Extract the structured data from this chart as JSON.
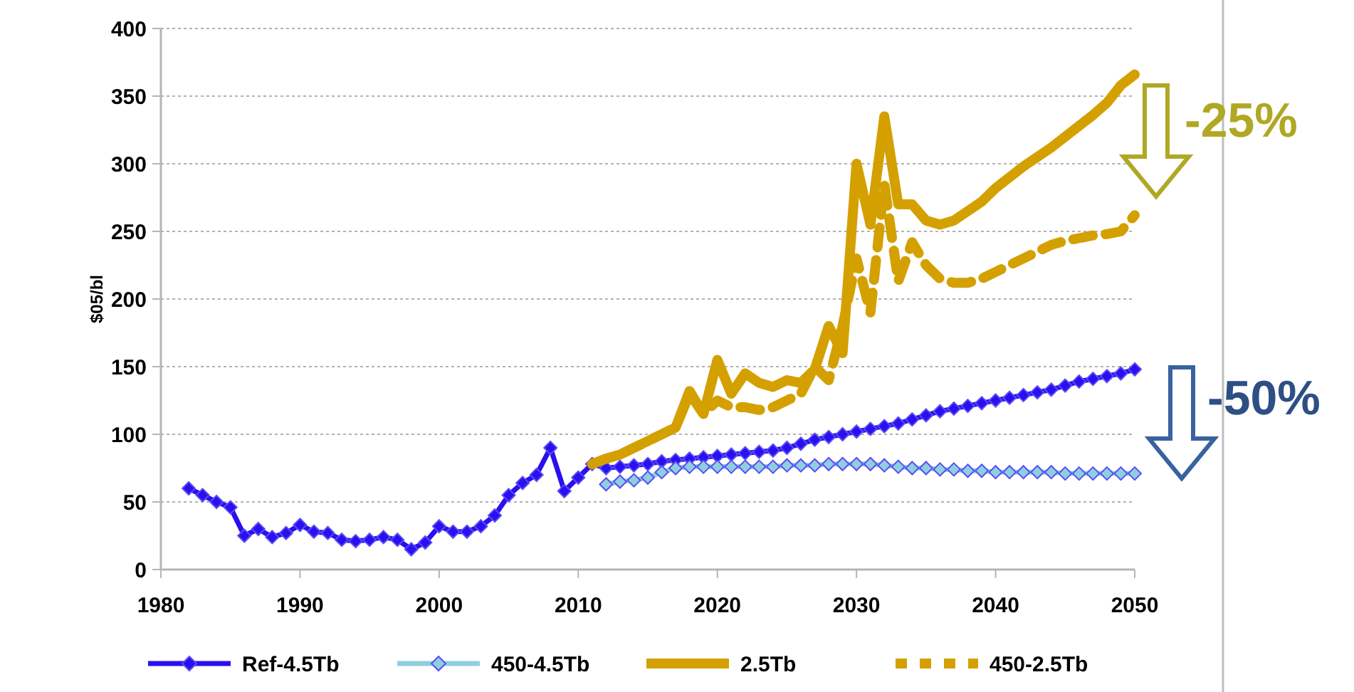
{
  "chart_data": {
    "type": "line",
    "ylabel": "$05/bl",
    "xlim": [
      1980,
      2050
    ],
    "xticks": [
      1980,
      1990,
      2000,
      2010,
      2020,
      2030,
      2040,
      2050
    ],
    "ylim": [
      0,
      400
    ],
    "yticks": [
      0,
      50,
      100,
      150,
      200,
      250,
      300,
      350,
      400
    ],
    "grid": "y",
    "legend": "bottom",
    "annotations": [
      "-25%",
      "-50%"
    ],
    "series": [
      {
        "name": "Ref-4.5Tb",
        "color": "#2a0ff0",
        "marker": "diamond",
        "line_style": "solid",
        "x": [
          1982,
          1983,
          1984,
          1985,
          1986,
          1987,
          1988,
          1989,
          1990,
          1991,
          1992,
          1993,
          1994,
          1995,
          1996,
          1997,
          1998,
          1999,
          2000,
          2001,
          2002,
          2003,
          2004,
          2005,
          2006,
          2007,
          2008,
          2009,
          2010,
          2011,
          2012,
          2013,
          2014,
          2015,
          2016,
          2017,
          2018,
          2019,
          2020,
          2021,
          2022,
          2023,
          2024,
          2025,
          2026,
          2027,
          2028,
          2029,
          2030,
          2031,
          2032,
          2033,
          2034,
          2035,
          2036,
          2037,
          2038,
          2039,
          2040,
          2041,
          2042,
          2043,
          2044,
          2045,
          2046,
          2047,
          2048,
          2049,
          2050
        ],
        "values": [
          60,
          55,
          50,
          46,
          25,
          30,
          24,
          27,
          33,
          28,
          27,
          22,
          21,
          22,
          24,
          22,
          15,
          20,
          32,
          28,
          28,
          32,
          40,
          55,
          64,
          70,
          90,
          58,
          68,
          78,
          75,
          76,
          77,
          78,
          80,
          81,
          82,
          83,
          84,
          85,
          86,
          87,
          88,
          90,
          93,
          96,
          98,
          100,
          102,
          104,
          106,
          108,
          111,
          114,
          117,
          119,
          121,
          123,
          125,
          127,
          129,
          131,
          133,
          136,
          139,
          141,
          143,
          145,
          148
        ]
      },
      {
        "name": "450-4.5Tb",
        "color": "#8ecfdf",
        "marker": "diamond",
        "line_style": "solid",
        "x": [
          2012,
          2013,
          2014,
          2015,
          2016,
          2017,
          2018,
          2019,
          2020,
          2021,
          2022,
          2023,
          2024,
          2025,
          2026,
          2027,
          2028,
          2029,
          2030,
          2031,
          2032,
          2033,
          2034,
          2035,
          2036,
          2037,
          2038,
          2039,
          2040,
          2041,
          2042,
          2043,
          2044,
          2045,
          2046,
          2047,
          2048,
          2049,
          2050
        ],
        "values": [
          63,
          65,
          66,
          68,
          72,
          75,
          76,
          76,
          76,
          76,
          76,
          76,
          76,
          77,
          77,
          77,
          78,
          78,
          78,
          78,
          77,
          76,
          75,
          75,
          74,
          74,
          73,
          73,
          72,
          72,
          72,
          72,
          72,
          71,
          71,
          71,
          71,
          71,
          71
        ]
      },
      {
        "name": "2.5Tb",
        "color": "#d4a000",
        "marker": "none",
        "line_style": "solid",
        "x": [
          2011,
          2012,
          2013,
          2014,
          2015,
          2016,
          2017,
          2018,
          2019,
          2020,
          2021,
          2022,
          2023,
          2024,
          2025,
          2026,
          2027,
          2028,
          2029,
          2030,
          2031,
          2032,
          2033,
          2034,
          2035,
          2036,
          2037,
          2038,
          2039,
          2040,
          2041,
          2042,
          2043,
          2044,
          2045,
          2046,
          2047,
          2048,
          2049,
          2050
        ],
        "values": [
          78,
          82,
          85,
          90,
          95,
          100,
          105,
          132,
          115,
          155,
          130,
          145,
          138,
          135,
          140,
          138,
          148,
          180,
          160,
          300,
          255,
          335,
          270,
          270,
          258,
          255,
          258,
          265,
          272,
          282,
          290,
          298,
          305,
          312,
          320,
          328,
          336,
          345,
          358,
          366
        ]
      },
      {
        "name": "450-2.5Tb",
        "color": "#d4a000",
        "marker": "none",
        "line_style": "dashed",
        "x": [
          2011,
          2012,
          2013,
          2014,
          2015,
          2016,
          2017,
          2018,
          2019,
          2020,
          2021,
          2022,
          2023,
          2024,
          2025,
          2026,
          2027,
          2028,
          2029,
          2030,
          2031,
          2032,
          2033,
          2034,
          2035,
          2036,
          2037,
          2038,
          2039,
          2040,
          2041,
          2042,
          2043,
          2044,
          2045,
          2046,
          2047,
          2048,
          2049,
          2050
        ],
        "values": [
          78,
          82,
          85,
          90,
          95,
          100,
          105,
          130,
          115,
          125,
          120,
          120,
          118,
          120,
          125,
          130,
          150,
          140,
          180,
          230,
          190,
          285,
          213,
          242,
          225,
          215,
          212,
          212,
          215,
          220,
          225,
          230,
          235,
          240,
          243,
          245,
          247,
          248,
          250,
          262
        ]
      }
    ]
  }
}
